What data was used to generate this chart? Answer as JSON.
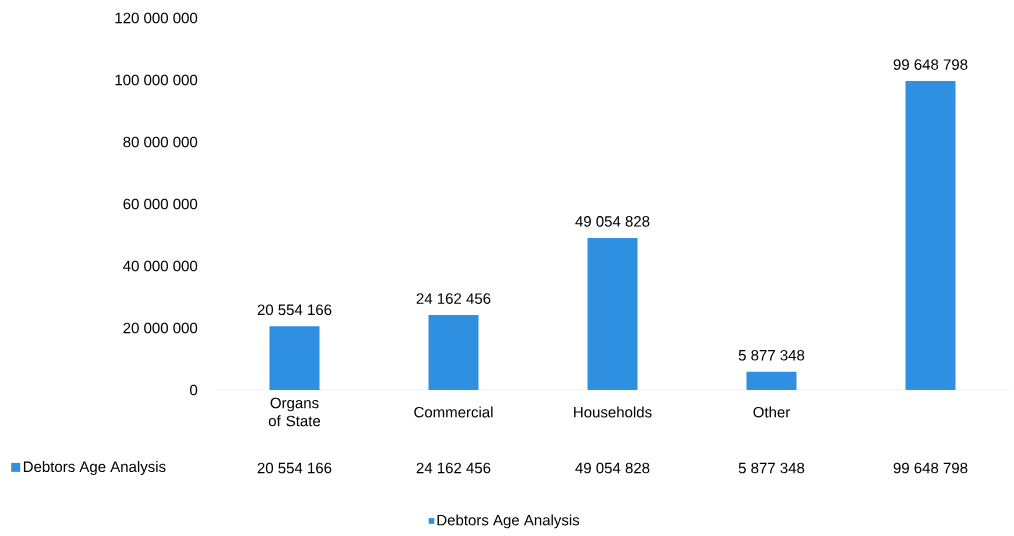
{
  "chart_data": {
    "type": "bar",
    "categories": [
      "Organs of State",
      "Commercial",
      "Households",
      "Other",
      null
    ],
    "series": [
      {
        "name": "Debtors Age Analysis",
        "color": "#2f8fe0",
        "values": [
          20554166,
          24162456,
          49054828,
          5877348,
          99648798
        ],
        "value_labels": [
          "20 554 166",
          "24 162 456",
          "49 054 828",
          "5 877 348",
          "99 648 798"
        ]
      }
    ],
    "ylim": [
      0,
      120000000
    ],
    "yticks": [
      {
        "value": 0,
        "label": "0"
      },
      {
        "value": 20000000,
        "label": "20 000 000"
      },
      {
        "value": 40000000,
        "label": "40 000 000"
      },
      {
        "value": 60000000,
        "label": "60 000 000"
      },
      {
        "value": 80000000,
        "label": "80 000 000"
      },
      {
        "value": 100000000,
        "label": "100 000 000"
      },
      {
        "value": 120000000,
        "label": "120 000 000"
      }
    ],
    "legend": "bottom"
  }
}
